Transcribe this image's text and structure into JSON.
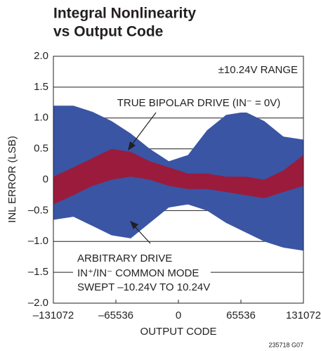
{
  "chart_data": {
    "type": "band",
    "title": [
      "Integral Nonlinearity",
      "vs Output Code"
    ],
    "xlabel": "OUTPUT CODE",
    "ylabel": "INL ERROR (LSB)",
    "annotations": {
      "range": "±10.24V RANGE",
      "true_bipolar": "TRUE BIPOLAR DRIVE (IN⁻ = 0V)",
      "arbitrary": [
        "ARBITRARY DRIVE",
        "IN⁺/IN⁻ COMMON MODE",
        "SWEPT –10.24V TO 10.24V"
      ],
      "footer": "235718 G07"
    },
    "x": [
      -131072,
      -110000,
      -90000,
      -70000,
      -50000,
      -30000,
      -10000,
      10000,
      30000,
      50000,
      70000,
      90000,
      110000,
      131072
    ],
    "series": [
      {
        "color": "#3a55a4",
        "upper": [
          1.2,
          1.2,
          1.1,
          0.95,
          0.75,
          0.5,
          0.3,
          0.4,
          0.8,
          1.05,
          1.1,
          0.95,
          0.7,
          0.65
        ],
        "lower": [
          -0.65,
          -0.6,
          -0.75,
          -0.9,
          -0.95,
          -0.7,
          -0.45,
          -0.4,
          -0.5,
          -0.7,
          -0.85,
          -1.0,
          -1.1,
          -1.15
        ]
      },
      {
        "color": "#9b1b3c",
        "upper": [
          0.05,
          0.2,
          0.35,
          0.5,
          0.45,
          0.3,
          0.2,
          0.1,
          0.1,
          0.05,
          0.05,
          0.0,
          0.15,
          0.4
        ],
        "lower": [
          -0.4,
          -0.25,
          -0.1,
          0.0,
          0.05,
          0.0,
          -0.1,
          -0.15,
          -0.15,
          -0.2,
          -0.25,
          -0.3,
          -0.2,
          -0.1
        ]
      }
    ],
    "xlim": [
      -131072,
      131072
    ],
    "ylim": [
      -2,
      2
    ],
    "xticks": [
      {
        "value": -131072,
        "label": "–131072"
      },
      {
        "value": -65536,
        "label": "–65536"
      },
      0,
      65536,
      131072
    ],
    "yticks": [
      {
        "value": -2,
        "label": "–2.0"
      },
      {
        "value": -1.5,
        "label": "–1.5"
      },
      {
        "value": -1,
        "label": "–1.0"
      },
      {
        "value": -0.5,
        "label": "–0.5"
      },
      0,
      0.5,
      {
        "value": 1,
        "label": "1.0"
      },
      1.5,
      {
        "value": 2,
        "label": "2.0"
      }
    ],
    "grid": true
  }
}
